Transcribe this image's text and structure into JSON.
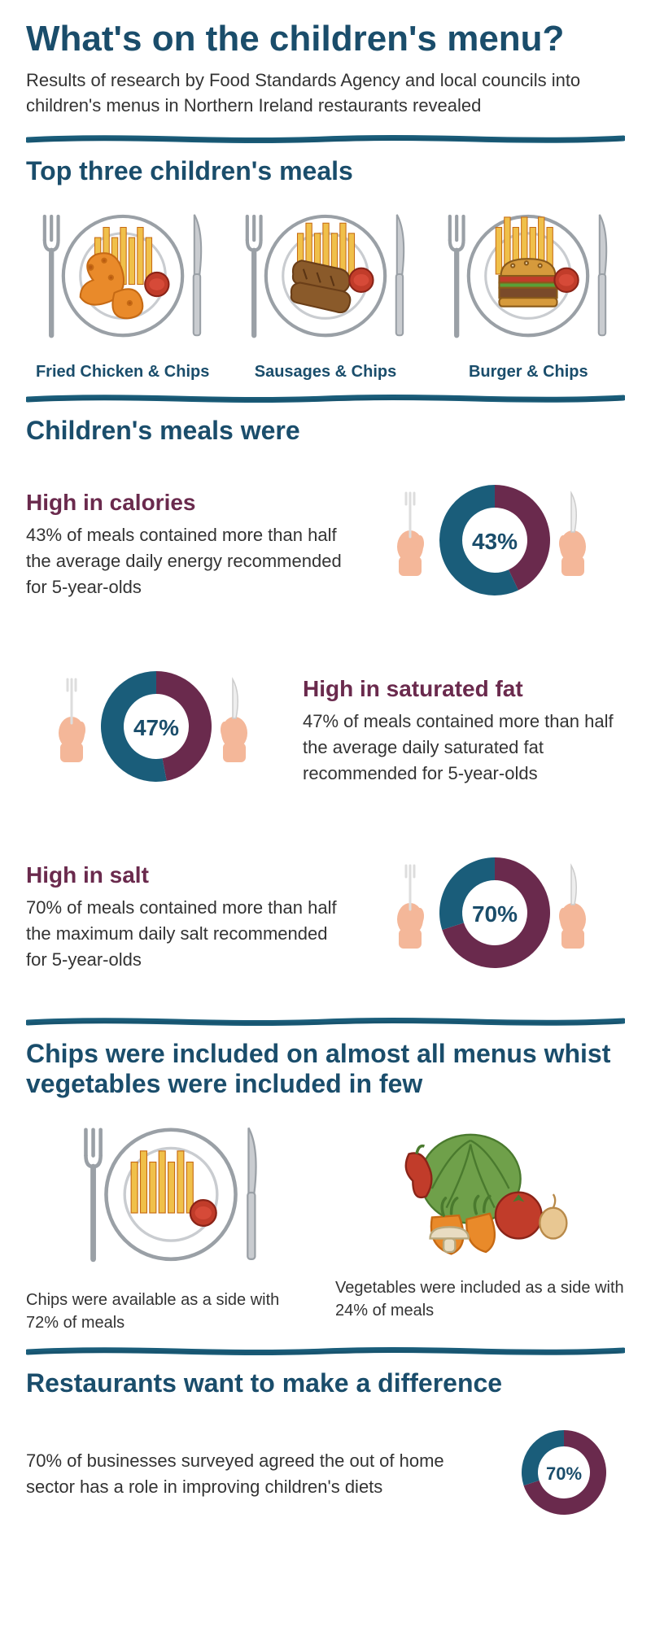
{
  "colors": {
    "teal": "#1a5d7a",
    "tealDark": "#174f68",
    "maroon": "#6a2a4d",
    "grey": "#9aa0a6",
    "greyLight": "#c9ccd0",
    "skin": "#f4b799",
    "orange": "#e98a2a",
    "orangeDark": "#c66a14",
    "yellow": "#f0c04a",
    "brown": "#8a5a2a",
    "red": "#c13c2a",
    "green": "#6fa04a",
    "greenDark": "#4a7a2e",
    "bun": "#d69a3c",
    "lettuce": "#5aa038",
    "burger": "#7a4a2a"
  },
  "title": "What's on the children's menu?",
  "subtitle": "Results of research by Food Standards Agency and local councils into children's menus in Northern Ireland restaurants revealed",
  "section1": {
    "heading": "Top three children's meals",
    "meals": [
      {
        "label": "Fried Chicken & Chips",
        "type": "chicken"
      },
      {
        "label": "Sausages & Chips",
        "type": "sausages"
      },
      {
        "label": "Burger & Chips",
        "type": "burger"
      }
    ]
  },
  "section2": {
    "heading": "Children's meals were",
    "stats": [
      {
        "title": "High in calories",
        "text": "43% of meals contained more than half the average daily energy recommended for 5-year-olds",
        "percent": 43,
        "layout": "text-left"
      },
      {
        "title": "High in saturated fat",
        "text": "47% of meals contained more than half the average daily saturated fat recommended for 5-year-olds",
        "percent": 47,
        "layout": "text-right"
      },
      {
        "title": "High in salt",
        "text": "70% of meals contained more than half the maximum daily salt recommended for 5-year-olds",
        "percent": 70,
        "layout": "text-left"
      }
    ]
  },
  "section3": {
    "heading": "Chips were included on almost all menus whist vegetables were included in few",
    "sides": [
      {
        "text": "Chips were available as a side with 72% of meals",
        "type": "chips-plate"
      },
      {
        "text": "Vegetables were included as a side with 24% of meals",
        "type": "veg"
      }
    ]
  },
  "section4": {
    "heading": "Restaurants want to make a difference",
    "text": "70% of businesses surveyed agreed the out of home sector has a role in improving children's diets",
    "percent": 70
  },
  "donut": {
    "outerR": 68,
    "innerR": 40,
    "size": 200,
    "smallSize": 150,
    "smallOuterR": 52,
    "smallInnerR": 32,
    "startDeg": -90
  }
}
